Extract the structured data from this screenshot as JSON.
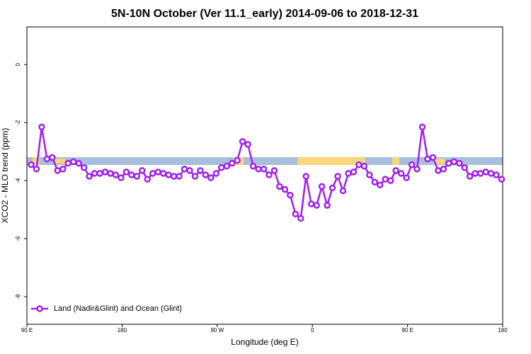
{
  "chart_data": {
    "type": "line",
    "title": "5N-10N October (Ver 11.1_early)   2014-09-06 to 2018-12-31",
    "x_label": "Longitude (deg E)",
    "y_label": "XCO2 - MLO trend (ppm)",
    "xlim": [
      90,
      540
    ],
    "xticks": [
      {
        "value": 90,
        "label": "90 E"
      },
      {
        "value": 180,
        "label": "180"
      },
      {
        "value": 270,
        "label": "90 W"
      },
      {
        "value": 360,
        "label": "0"
      },
      {
        "value": 450,
        "label": "90 E"
      },
      {
        "value": 540,
        "label": "180"
      }
    ],
    "ylim": [
      -8.95,
      1.3
    ],
    "yticks": [
      0,
      -2,
      -4,
      -6,
      -8
    ],
    "legend": "bottom-left",
    "x": [
      94,
      99,
      104,
      109,
      114,
      119,
      124,
      129,
      134,
      139,
      144,
      149,
      154,
      159,
      164,
      169,
      174,
      179,
      184,
      189,
      194,
      199,
      204,
      209,
      214,
      219,
      224,
      229,
      234,
      239,
      244,
      249,
      254,
      259,
      264,
      269,
      274,
      279,
      284,
      289,
      294,
      299,
      304,
      309,
      314,
      319,
      324,
      329,
      334,
      339,
      344,
      349,
      354,
      359,
      364,
      369,
      374,
      379,
      384,
      389,
      394,
      399,
      404,
      409,
      414,
      419,
      424,
      429,
      434,
      439,
      444,
      449,
      454,
      459,
      464,
      469,
      474,
      479,
      484,
      489,
      494,
      499,
      504,
      509,
      514,
      519,
      524,
      529,
      534,
      539
    ],
    "series": [
      {
        "name": "Land (Nadir&Glint) and Ocean (Glint)",
        "color": "#a020f0",
        "values": [
          -3.45,
          -3.6,
          -2.15,
          -3.25,
          -3.2,
          -3.65,
          -3.6,
          -3.4,
          -3.35,
          -3.4,
          -3.55,
          -3.85,
          -3.75,
          -3.75,
          -3.7,
          -3.75,
          -3.8,
          -3.9,
          -3.7,
          -3.8,
          -3.85,
          -3.65,
          -3.95,
          -3.75,
          -3.7,
          -3.75,
          -3.8,
          -3.85,
          -3.85,
          -3.6,
          -3.65,
          -3.85,
          -3.65,
          -3.8,
          -3.9,
          -3.75,
          -3.55,
          -3.5,
          -3.4,
          -3.3,
          -2.65,
          -2.75,
          -3.5,
          -3.6,
          -3.6,
          -3.8,
          -3.65,
          -4.2,
          -4.3,
          -4.5,
          -5.15,
          -5.3,
          -3.85,
          -4.8,
          -4.85,
          -4.2,
          -4.85,
          -4.25,
          -3.85,
          -4.35,
          -3.75,
          -3.7,
          -3.45,
          -3.5,
          -3.8,
          -4.05,
          -4.15,
          -3.95,
          -4.0,
          -3.65,
          -3.75,
          -3.9,
          -3.45,
          -3.6,
          -2.15,
          -3.25,
          -3.2,
          -3.65,
          -3.6,
          -3.4,
          -3.35,
          -3.4,
          -3.55,
          -3.85,
          -3.75,
          -3.75,
          -3.7,
          -3.75,
          -3.8,
          -3.95
        ]
      }
    ]
  }
}
